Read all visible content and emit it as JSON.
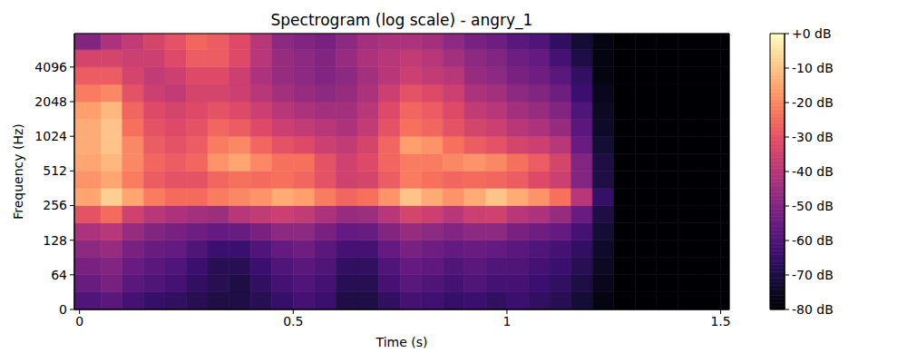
{
  "chart_data": {
    "type": "heatmap",
    "title": "Spectrogram (log scale) - angry_1",
    "x_label": "Time (s)",
    "y_label": "Frequency (Hz)",
    "xlim": [
      -0.012,
      1.52
    ],
    "xticks": [
      0,
      0.5,
      1,
      1.5
    ],
    "ylim": [
      0,
      8000
    ],
    "yticks": [
      0,
      64,
      128,
      256,
      512,
      1024,
      2048,
      4096
    ],
    "log": "y",
    "x_edges": [
      -0.012,
      0.05,
      0.1,
      0.15,
      0.2,
      0.25,
      0.3,
      0.35,
      0.4,
      0.45,
      0.5,
      0.55,
      0.6,
      0.65,
      0.7,
      0.75,
      0.8,
      0.85,
      0.9,
      0.95,
      1.0,
      1.05,
      1.1,
      1.15,
      1.2,
      1.25,
      1.3,
      1.35,
      1.4,
      1.45,
      1.5,
      1.52
    ],
    "y_edges": [
      0,
      32,
      64,
      91,
      128,
      181,
      256,
      362,
      512,
      724,
      1024,
      1448,
      2048,
      2896,
      4096,
      5793,
      8000
    ],
    "cells": [
      [
        -60,
        -58,
        -62,
        -65,
        -66,
        -68,
        -70,
        -70,
        -68,
        -65,
        -62,
        -64,
        -70,
        -70,
        -66,
        -62,
        -63,
        -65,
        -64,
        -66,
        -64,
        -66,
        -68,
        -72,
        -78,
        -80,
        -80,
        -80,
        -80,
        -80,
        -80
      ],
      [
        -55,
        -52,
        -58,
        -60,
        -62,
        -66,
        -68,
        -70,
        -66,
        -62,
        -60,
        -62,
        -68,
        -68,
        -62,
        -58,
        -60,
        -62,
        -60,
        -62,
        -62,
        -64,
        -66,
        -70,
        -76,
        -80,
        -80,
        -80,
        -80,
        -80,
        -80
      ],
      [
        -52,
        -50,
        -55,
        -58,
        -60,
        -64,
        -68,
        -68,
        -64,
        -60,
        -58,
        -60,
        -66,
        -66,
        -60,
        -56,
        -57,
        -60,
        -58,
        -60,
        -60,
        -62,
        -64,
        -68,
        -75,
        -80,
        -80,
        -80,
        -80,
        -80,
        -80
      ],
      [
        -48,
        -46,
        -52,
        -55,
        -56,
        -60,
        -64,
        -64,
        -60,
        -56,
        -54,
        -58,
        -62,
        -62,
        -56,
        -52,
        -54,
        -56,
        -55,
        -56,
        -58,
        -60,
        -62,
        -66,
        -74,
        -80,
        -80,
        -80,
        -80,
        -80,
        -80
      ],
      [
        -42,
        -40,
        -46,
        -50,
        -52,
        -54,
        -56,
        -55,
        -52,
        -48,
        -48,
        -52,
        -56,
        -55,
        -50,
        -46,
        -48,
        -50,
        -48,
        -48,
        -52,
        -54,
        -56,
        -62,
        -72,
        -80,
        -80,
        -80,
        -80,
        -80,
        -80
      ],
      [
        -30,
        -25,
        -35,
        -40,
        -42,
        -44,
        -45,
        -40,
        -38,
        -36,
        -38,
        -42,
        -46,
        -45,
        -40,
        -34,
        -36,
        -40,
        -36,
        -35,
        -40,
        -42,
        -46,
        -55,
        -70,
        -80,
        -80,
        -80,
        -80,
        -80,
        -80
      ],
      [
        -15,
        -8,
        -15,
        -22,
        -25,
        -25,
        -22,
        -20,
        -18,
        -14,
        -16,
        -22,
        -26,
        -24,
        -18,
        -10,
        -14,
        -18,
        -14,
        -10,
        -14,
        -18,
        -24,
        -40,
        -65,
        -80,
        -80,
        -80,
        -80,
        -80,
        -80
      ],
      [
        -18,
        -15,
        -22,
        -28,
        -30,
        -30,
        -26,
        -24,
        -25,
        -24,
        -26,
        -30,
        -35,
        -34,
        -28,
        -22,
        -24,
        -26,
        -25,
        -26,
        -28,
        -32,
        -36,
        -50,
        -70,
        -80,
        -80,
        -80,
        -80,
        -80,
        -80
      ],
      [
        -15,
        -12,
        -20,
        -26,
        -28,
        -26,
        -18,
        -15,
        -20,
        -24,
        -24,
        -30,
        -35,
        -32,
        -26,
        -22,
        -22,
        -20,
        -18,
        -20,
        -24,
        -28,
        -34,
        -50,
        -70,
        -80,
        -80,
        -80,
        -80,
        -80,
        -80
      ],
      [
        -14,
        -10,
        -20,
        -28,
        -30,
        -28,
        -22,
        -20,
        -26,
        -30,
        -32,
        -36,
        -38,
        -34,
        -26,
        -16,
        -18,
        -24,
        -28,
        -30,
        -34,
        -36,
        -40,
        -55,
        -72,
        -80,
        -80,
        -80,
        -80,
        -80,
        -80
      ],
      [
        -14,
        -10,
        -24,
        -30,
        -32,
        -30,
        -26,
        -28,
        -32,
        -36,
        -38,
        -40,
        -42,
        -38,
        -30,
        -24,
        -26,
        -30,
        -34,
        -36,
        -40,
        -42,
        -46,
        -58,
        -74,
        -80,
        -80,
        -80,
        -80,
        -80,
        -80
      ],
      [
        -16,
        -12,
        -26,
        -32,
        -34,
        -32,
        -30,
        -32,
        -36,
        -40,
        -42,
        -44,
        -44,
        -40,
        -32,
        -26,
        -28,
        -32,
        -38,
        -40,
        -44,
        -46,
        -50,
        -60,
        -75,
        -80,
        -80,
        -80,
        -80,
        -80,
        -80
      ],
      [
        -22,
        -20,
        -30,
        -36,
        -38,
        -34,
        -34,
        -36,
        -40,
        -44,
        -46,
        -48,
        -46,
        -42,
        -36,
        -30,
        -32,
        -36,
        -42,
        -44,
        -48,
        -50,
        -54,
        -64,
        -76,
        -80,
        -80,
        -80,
        -80,
        -80,
        -80
      ],
      [
        -28,
        -28,
        -34,
        -38,
        -36,
        -32,
        -32,
        -36,
        -42,
        -46,
        -48,
        -50,
        -48,
        -44,
        -40,
        -36,
        -38,
        -40,
        -46,
        -48,
        -52,
        -54,
        -58,
        -66,
        -78,
        -80,
        -80,
        -80,
        -80,
        -80,
        -80
      ],
      [
        -34,
        -34,
        -36,
        -36,
        -32,
        -28,
        -28,
        -32,
        -40,
        -46,
        -48,
        -50,
        -46,
        -42,
        -40,
        -38,
        -40,
        -44,
        -48,
        -50,
        -54,
        -56,
        -62,
        -70,
        -78,
        -80,
        -80,
        -80,
        -80,
        -80,
        -80
      ],
      [
        -50,
        -42,
        -38,
        -34,
        -30,
        -26,
        -28,
        -32,
        -40,
        -48,
        -50,
        -52,
        -48,
        -44,
        -42,
        -42,
        -44,
        -48,
        -52,
        -54,
        -58,
        -60,
        -66,
        -72,
        -78,
        -80,
        -80,
        -80,
        -80,
        -80,
        -80
      ]
    ],
    "colorbar": {
      "range": [
        -80,
        0
      ],
      "ticks": [
        {
          "value": 0,
          "label": "+0 dB"
        },
        {
          "value": -10,
          "label": "-10 dB"
        },
        {
          "value": -20,
          "label": "-20 dB"
        },
        {
          "value": -30,
          "label": "-30 dB"
        },
        {
          "value": -40,
          "label": "-40 dB"
        },
        {
          "value": -50,
          "label": "-50 dB"
        },
        {
          "value": -60,
          "label": "-60 dB"
        },
        {
          "value": -70,
          "label": "-70 dB"
        },
        {
          "value": -80,
          "label": "-80 dB"
        }
      ]
    }
  }
}
